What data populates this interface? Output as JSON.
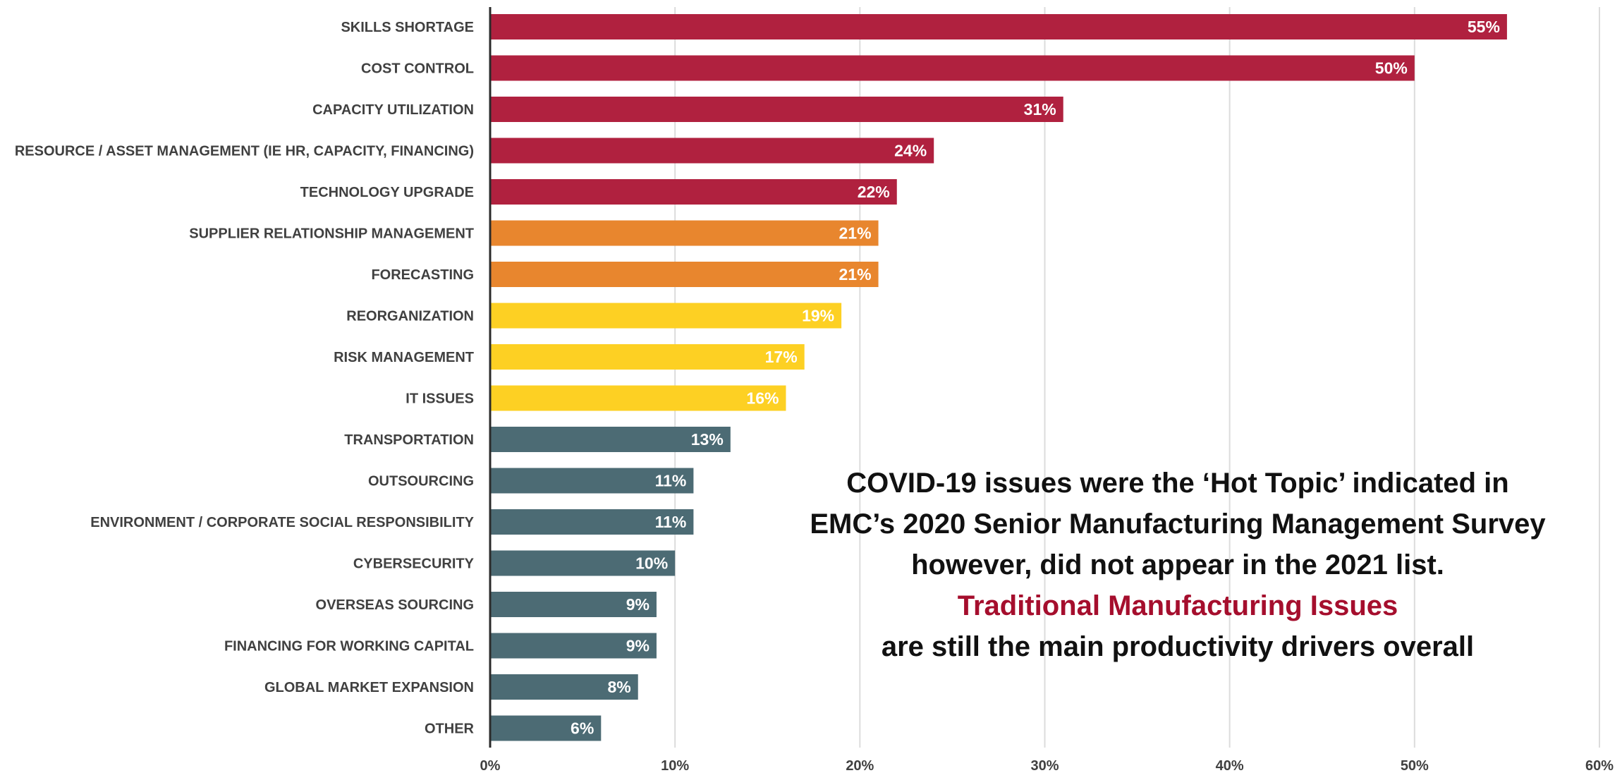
{
  "chart_data": {
    "type": "bar",
    "orientation": "horizontal",
    "categories": [
      "SKILLS SHORTAGE",
      "COST CONTROL",
      "CAPACITY UTILIZATION",
      "RESOURCE / ASSET MANAGEMENT (IE HR, CAPACITY, FINANCING)",
      "TECHNOLOGY UPGRADE",
      "SUPPLIER RELATIONSHIP MANAGEMENT",
      "FORECASTING",
      "REORGANIZATION",
      "RISK MANAGEMENT",
      "IT ISSUES",
      "TRANSPORTATION",
      "OUTSOURCING",
      "ENVIRONMENT / CORPORATE SOCIAL RESPONSIBILITY",
      "CYBERSECURITY",
      "OVERSEAS SOURCING",
      "FINANCING FOR WORKING CAPITAL",
      "GLOBAL MARKET EXPANSION",
      "OTHER"
    ],
    "values": [
      55,
      50,
      31,
      24,
      22,
      21,
      21,
      19,
      17,
      16,
      13,
      11,
      11,
      10,
      9,
      9,
      8,
      6
    ],
    "value_labels": [
      "55%",
      "50%",
      "31%",
      "24%",
      "22%",
      "21%",
      "21%",
      "19%",
      "17%",
      "16%",
      "13%",
      "11%",
      "11%",
      "10%",
      "9%",
      "9%",
      "8%",
      "6%"
    ],
    "bar_colors": [
      "#b0213f",
      "#b0213f",
      "#b0213f",
      "#b0213f",
      "#b0213f",
      "#e8862e",
      "#e8862e",
      "#fdd023",
      "#fdd023",
      "#fdd023",
      "#4c6b74",
      "#4c6b74",
      "#4c6b74",
      "#4c6b74",
      "#4c6b74",
      "#4c6b74",
      "#4c6b74",
      "#4c6b74"
    ],
    "xlim": [
      0,
      60
    ],
    "xticks": [
      0,
      10,
      20,
      30,
      40,
      50,
      60
    ],
    "xtick_labels": [
      "0%",
      "10%",
      "20%",
      "30%",
      "40%",
      "50%",
      "60%"
    ],
    "grid": true,
    "legend": "none",
    "title": "",
    "xlabel": "",
    "ylabel": ""
  },
  "annotation": {
    "line1": "COVID-19 issues were the ‘Hot Topic’ indicated in",
    "line2": "EMC’s 2020 Senior Manufacturing Management Survey",
    "line3": "however, did not appear in the 2021 list.",
    "highlight": "Traditional Manufacturing Issues",
    "line5": "are still the main productivity drivers overall",
    "highlight_color": "#a50e2d"
  }
}
